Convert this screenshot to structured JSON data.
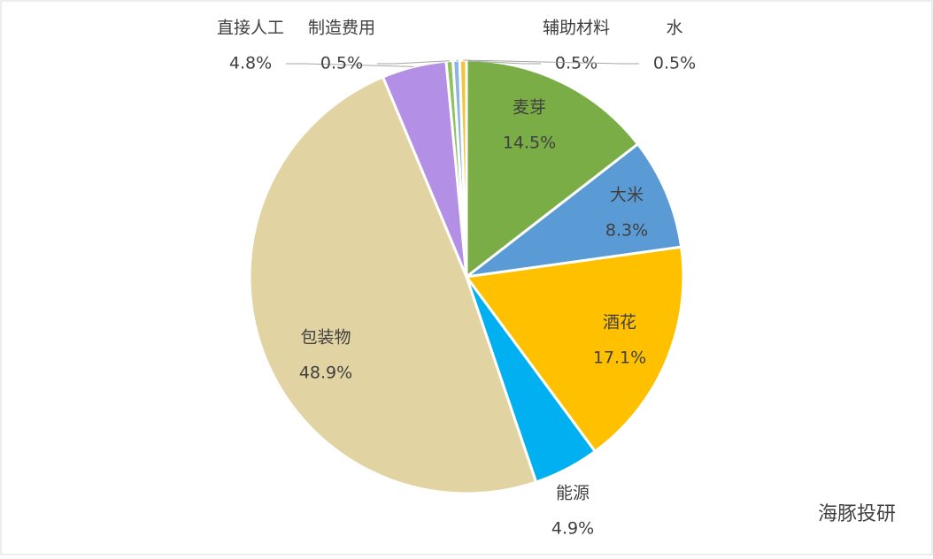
{
  "chart_data": {
    "type": "pie",
    "categories": [
      "麦芽",
      "大米",
      "酒花",
      "能源",
      "包装物",
      "直接人工",
      "制造费用",
      "辅助材料",
      "水"
    ],
    "values": [
      14.5,
      8.3,
      17.1,
      4.9,
      48.9,
      4.8,
      0.5,
      0.5,
      0.5
    ],
    "value_labels": [
      "14.5%",
      "8.3%",
      "17.1%",
      "4.9%",
      "48.9%",
      "4.8%",
      "0.5%",
      "0.5%",
      "0.5%"
    ],
    "colors": [
      "#7aad45",
      "#5b9bd5",
      "#ffc000",
      "#00b0f0",
      "#e2d3a3",
      "#b390e6",
      "#8fc15c",
      "#8db4e2",
      "#f5c242"
    ],
    "watermark": "海豚投研"
  }
}
